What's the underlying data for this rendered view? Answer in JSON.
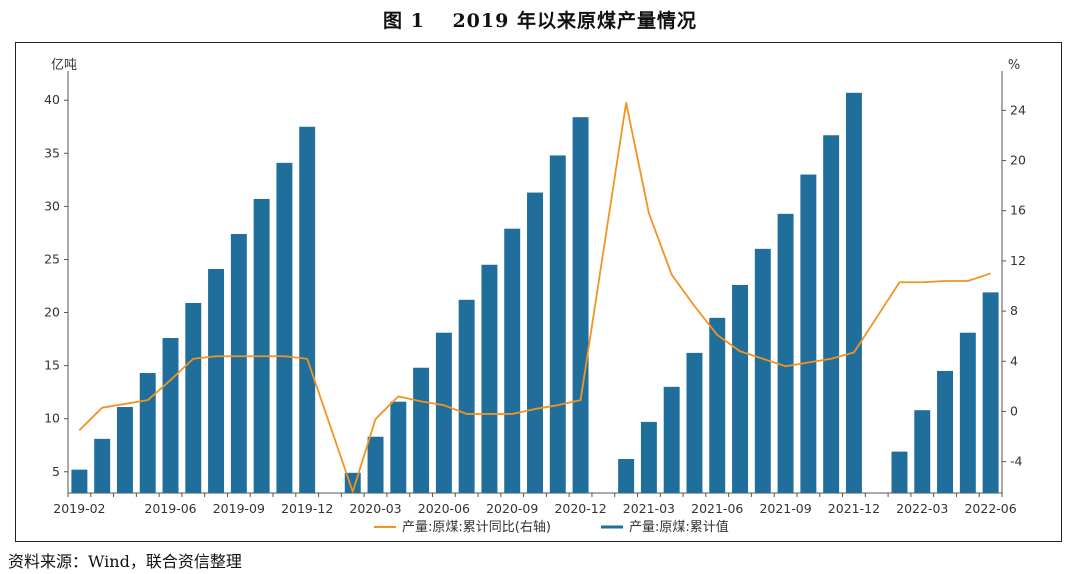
{
  "title": "图 1　 2019 年以来原煤产量情况",
  "source": "资料来源：Wind，联合资信整理",
  "chart_data": {
    "type": "bar",
    "left_unit": "亿吨",
    "right_unit": "%",
    "x": [
      "2019-02",
      "2019-03",
      "2019-04",
      "2019-05",
      "2019-06",
      "2019-07",
      "2019-08",
      "2019-09",
      "2019-10",
      "2019-11",
      "2019-12",
      "2020-01",
      "2020-02",
      "2020-03",
      "2020-04",
      "2020-05",
      "2020-06",
      "2020-07",
      "2020-08",
      "2020-09",
      "2020-10",
      "2020-11",
      "2020-12",
      "2021-01",
      "2021-02",
      "2021-03",
      "2021-04",
      "2021-05",
      "2021-06",
      "2021-07",
      "2021-08",
      "2021-09",
      "2021-10",
      "2021-11",
      "2021-12",
      "2022-01",
      "2022-02",
      "2022-03",
      "2022-04",
      "2022-05",
      "2022-06"
    ],
    "x_tick_labels": [
      "2019-02",
      "2019-06",
      "2019-09",
      "2019-12",
      "2020-03",
      "2020-06",
      "2020-09",
      "2020-12",
      "2021-03",
      "2021-06",
      "2021-09",
      "2021-12",
      "2022-03",
      "2022-06"
    ],
    "series": [
      {
        "name": "产量:原煤:累计值",
        "axis": "left",
        "type": "bar",
        "color": "#1f6e9c",
        "values": [
          5.2,
          8.1,
          11.1,
          14.3,
          17.6,
          20.9,
          24.1,
          27.4,
          30.7,
          34.1,
          37.5,
          null,
          4.9,
          8.3,
          11.6,
          14.8,
          18.1,
          21.2,
          24.5,
          27.9,
          31.3,
          34.8,
          38.4,
          null,
          6.2,
          9.7,
          13.0,
          16.2,
          19.5,
          22.6,
          26.0,
          29.3,
          33.0,
          36.7,
          40.7,
          null,
          6.9,
          10.8,
          14.5,
          18.1,
          21.9
        ]
      },
      {
        "name": "产量:原煤:累计同比(右轴)",
        "axis": "right",
        "type": "line",
        "color": "#f29322",
        "values": [
          -1.5,
          0.3,
          0.6,
          0.9,
          2.5,
          4.2,
          4.4,
          4.4,
          4.4,
          4.4,
          4.2,
          null,
          -6.4,
          -0.6,
          1.2,
          0.8,
          0.5,
          -0.2,
          -0.2,
          -0.2,
          0.2,
          0.5,
          0.9,
          null,
          24.6,
          15.8,
          10.9,
          8.4,
          6.1,
          4.8,
          4.2,
          3.6,
          3.9,
          4.2,
          4.7,
          null,
          10.3,
          10.3,
          10.4,
          10.4,
          11.0
        ]
      }
    ],
    "y_left": {
      "min": 3,
      "max": 42,
      "ticks": [
        5,
        10,
        15,
        20,
        25,
        30,
        35,
        40
      ]
    },
    "y_right": {
      "min": -6.5,
      "max": 26.5,
      "ticks": [
        -4,
        0,
        4,
        8,
        12,
        16,
        20,
        24
      ]
    },
    "legend": {
      "position": "bottom-center",
      "entries": [
        "产量:原煤:累计同比(右轴)",
        "产量:原煤:累计值"
      ]
    }
  }
}
